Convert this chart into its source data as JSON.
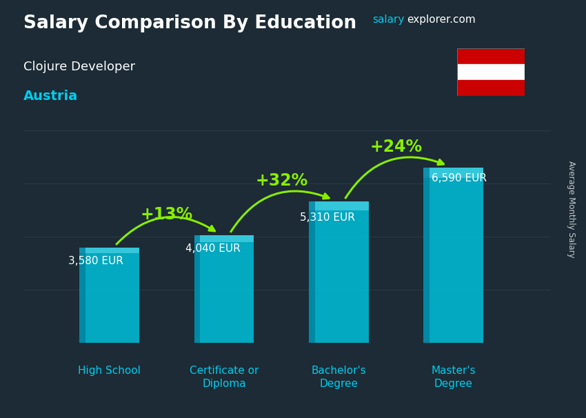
{
  "title_main": "Salary Comparison By Education",
  "subtitle1": "Clojure Developer",
  "subtitle2": "Austria",
  "categories": [
    "High School",
    "Certificate or\nDiploma",
    "Bachelor's\nDegree",
    "Master's\nDegree"
  ],
  "values": [
    3580,
    4040,
    5310,
    6590
  ],
  "value_labels": [
    "3,580 EUR",
    "4,040 EUR",
    "5,310 EUR",
    "6,590 EUR"
  ],
  "pct_labels": [
    "+13%",
    "+32%",
    "+24%"
  ],
  "bar_color": "#00bcd4",
  "bar_highlight": "#60dff0",
  "bar_shadow": "#007a9a",
  "bg_color": "#1c2b35",
  "text_color_white": "#ffffff",
  "text_color_cyan": "#00ccee",
  "text_color_green": "#88ee00",
  "ylabel": "Average Monthly Salary",
  "ylim": [
    0,
    8500
  ],
  "website_salary": "salary",
  "website_rest": "explorer.com",
  "bar_width": 0.52,
  "flag_red": "#cc0000",
  "flag_white": "#ffffff",
  "pct_fontsize": 17,
  "val_fontsize": 11,
  "cat_fontsize": 11
}
